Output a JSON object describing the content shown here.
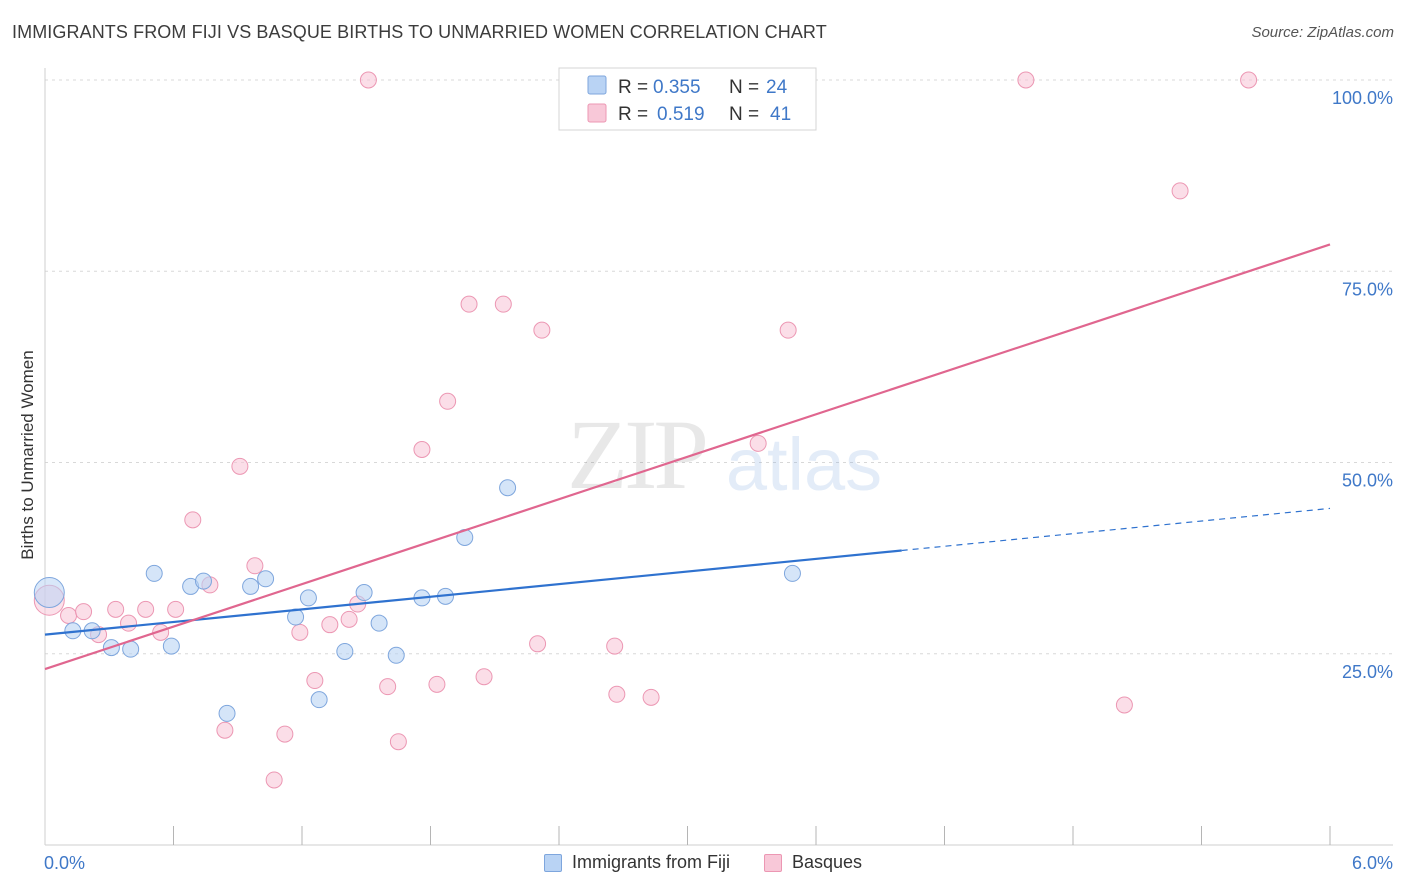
{
  "header": {
    "title": "IMMIGRANTS FROM FIJI VS BASQUE BIRTHS TO UNMARRIED WOMEN CORRELATION CHART",
    "source": "Source: ZipAtlas.com"
  },
  "watermark": {
    "part1": "ZIP",
    "part2": "atlas"
  },
  "legend": {
    "rows": [
      {
        "r_label": "R =",
        "r_value": "0.355",
        "n_label": "N =",
        "n_value": "24"
      },
      {
        "r_label": "R =",
        "r_value": "0.519",
        "n_label": "N =",
        "n_value": "41"
      }
    ]
  },
  "colors": {
    "fiji_fill": "#b9d3f4",
    "fiji_stroke": "#7ea6dd",
    "fiji_line": "#2f72cf",
    "basque_fill": "#f8c8d8",
    "basque_stroke": "#ec97b3",
    "basque_line": "#e0668f",
    "axis_value": "#3f78c8",
    "grid": "#d8d8d8"
  },
  "chart_data": {
    "type": "scatter",
    "title": "IMMIGRANTS FROM FIJI VS BASQUE BIRTHS TO UNMARRIED WOMEN CORRELATION CHART",
    "xlabel": "",
    "ylabel": "Births to Unmarried Women",
    "xlim": [
      0,
      6
    ],
    "ylim": [
      0,
      100
    ],
    "x_tick_labels": [
      "0.0%",
      "6.0%"
    ],
    "y_ticks": [
      25,
      50,
      75,
      100
    ],
    "y_tick_labels": [
      "25.0%",
      "50.0%",
      "75.0%",
      "100.0%"
    ],
    "grid": true,
    "legend_position": "top-center",
    "series": [
      {
        "name": "Immigrants from Fiji",
        "r": 0.355,
        "n": 24,
        "trend": {
          "x0": 0,
          "y0": 27.5,
          "x1": 4.0,
          "y1": 38.5,
          "dashed_to_x": 6.0,
          "dashed_to_y": 44.0
        },
        "points": [
          {
            "x": 0.02,
            "y": 33.0,
            "big": true
          },
          {
            "x": 0.13,
            "y": 28.0
          },
          {
            "x": 0.22,
            "y": 28.0
          },
          {
            "x": 0.31,
            "y": 25.8
          },
          {
            "x": 0.4,
            "y": 25.6
          },
          {
            "x": 0.51,
            "y": 35.5
          },
          {
            "x": 0.59,
            "y": 26.0
          },
          {
            "x": 0.68,
            "y": 33.8
          },
          {
            "x": 0.74,
            "y": 34.5
          },
          {
            "x": 0.85,
            "y": 17.2
          },
          {
            "x": 0.96,
            "y": 33.8
          },
          {
            "x": 1.03,
            "y": 34.8
          },
          {
            "x": 1.17,
            "y": 29.8
          },
          {
            "x": 1.23,
            "y": 32.3
          },
          {
            "x": 1.28,
            "y": 19.0
          },
          {
            "x": 1.4,
            "y": 25.3
          },
          {
            "x": 1.49,
            "y": 33.0
          },
          {
            "x": 1.56,
            "y": 29.0
          },
          {
            "x": 1.64,
            "y": 24.8
          },
          {
            "x": 1.76,
            "y": 32.3
          },
          {
            "x": 1.87,
            "y": 32.5
          },
          {
            "x": 1.96,
            "y": 40.2
          },
          {
            "x": 2.16,
            "y": 46.7
          },
          {
            "x": 3.49,
            "y": 35.5
          }
        ]
      },
      {
        "name": "Basques",
        "r": 0.519,
        "n": 41,
        "trend": {
          "x0": 0,
          "y0": 23.0,
          "x1": 6.0,
          "y1": 78.5
        },
        "points": [
          {
            "x": 0.02,
            "y": 32.0,
            "big": true
          },
          {
            "x": 0.11,
            "y": 30.0
          },
          {
            "x": 0.18,
            "y": 30.5
          },
          {
            "x": 0.25,
            "y": 27.5
          },
          {
            "x": 0.33,
            "y": 30.8
          },
          {
            "x": 0.39,
            "y": 29.0
          },
          {
            "x": 0.47,
            "y": 30.8
          },
          {
            "x": 0.54,
            "y": 27.8
          },
          {
            "x": 0.61,
            "y": 30.8
          },
          {
            "x": 0.69,
            "y": 42.5
          },
          {
            "x": 0.77,
            "y": 34.0
          },
          {
            "x": 0.84,
            "y": 15.0
          },
          {
            "x": 0.91,
            "y": 49.5
          },
          {
            "x": 0.98,
            "y": 36.5
          },
          {
            "x": 1.07,
            "y": 8.5
          },
          {
            "x": 1.12,
            "y": 14.5
          },
          {
            "x": 1.19,
            "y": 27.8
          },
          {
            "x": 1.26,
            "y": 21.5
          },
          {
            "x": 1.33,
            "y": 28.8
          },
          {
            "x": 1.42,
            "y": 29.5
          },
          {
            "x": 1.46,
            "y": 31.5
          },
          {
            "x": 1.51,
            "y": 100.0
          },
          {
            "x": 1.6,
            "y": 20.7
          },
          {
            "x": 1.65,
            "y": 13.5
          },
          {
            "x": 1.76,
            "y": 51.7
          },
          {
            "x": 1.83,
            "y": 21.0
          },
          {
            "x": 1.88,
            "y": 58.0
          },
          {
            "x": 1.98,
            "y": 70.7
          },
          {
            "x": 2.05,
            "y": 22.0
          },
          {
            "x": 2.14,
            "y": 70.7
          },
          {
            "x": 2.3,
            "y": 26.3
          },
          {
            "x": 2.32,
            "y": 67.3
          },
          {
            "x": 2.66,
            "y": 26.0
          },
          {
            "x": 2.67,
            "y": 19.7
          },
          {
            "x": 2.83,
            "y": 19.3
          },
          {
            "x": 3.33,
            "y": 52.5
          },
          {
            "x": 3.47,
            "y": 67.3
          },
          {
            "x": 4.58,
            "y": 100.0
          },
          {
            "x": 5.04,
            "y": 18.3
          },
          {
            "x": 5.3,
            "y": 85.5
          },
          {
            "x": 5.62,
            "y": 100.0
          }
        ]
      }
    ]
  }
}
